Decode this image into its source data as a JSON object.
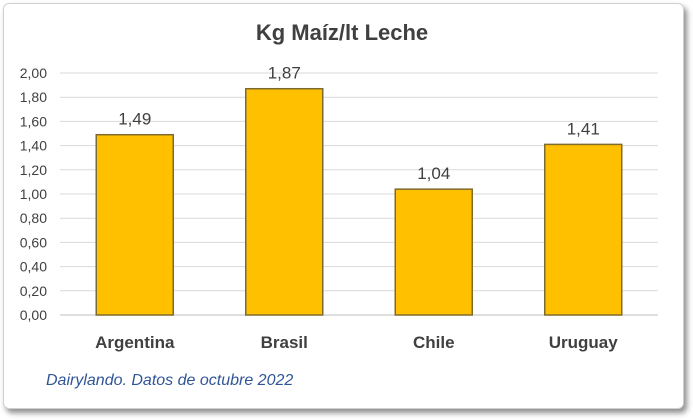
{
  "chart_data": {
    "type": "bar",
    "title": "Kg Maíz/lt Leche",
    "categories": [
      "Argentina",
      "Brasil",
      "Chile",
      "Uruguay"
    ],
    "values": [
      1.49,
      1.87,
      1.04,
      1.41
    ],
    "value_labels": [
      "1,49",
      "1,87",
      "1,04",
      "1,41"
    ],
    "yticks": [
      "0,00",
      "0,20",
      "0,40",
      "0,60",
      "0,80",
      "1,00",
      "1,20",
      "1,40",
      "1,60",
      "1,80",
      "2,00"
    ],
    "ylim": [
      0,
      2
    ],
    "grid": true,
    "legend": "none",
    "colors": {
      "bar": "#FFC000",
      "bar_border": "#7f6a2e",
      "grid": "#d9d9d9",
      "text": "#404040"
    }
  },
  "source": "Dairylando. Datos de octubre 2022"
}
